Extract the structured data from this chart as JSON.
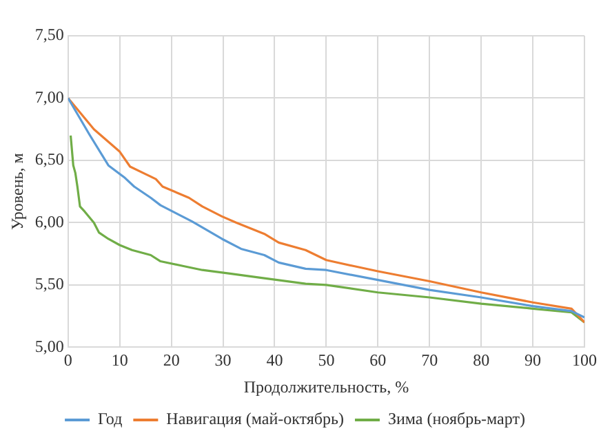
{
  "chart_data": {
    "type": "line",
    "xlabel": "Продолжительность, %",
    "ylabel": "Уровень, м",
    "xlim": [
      0,
      100
    ],
    "xticks": [
      0,
      10,
      20,
      30,
      40,
      50,
      60,
      70,
      80,
      90,
      100
    ],
    "ylim": [
      5,
      7.5
    ],
    "yticks": [
      {
        "value": 5,
        "label": "5,00"
      },
      {
        "value": 5.5,
        "label": "5,50"
      },
      {
        "value": 6,
        "label": "6,00"
      },
      {
        "value": 6.5,
        "label": "6,50"
      },
      {
        "value": 7,
        "label": "7,00"
      },
      {
        "value": 7.5,
        "label": "7,50"
      }
    ],
    "grid": true,
    "legend": "bottom",
    "marker": "none",
    "line_style": "solid",
    "series": [
      {
        "name": "Год",
        "color": "#5b9bd5",
        "x": [
          0,
          4.1,
          7.8,
          11,
          12.8,
          16,
          17.9,
          24,
          29.8,
          33.5,
          38,
          40.8,
          46,
          50,
          60,
          70,
          80,
          90,
          97.5,
          100
        ],
        "values": [
          7.0,
          6.71,
          6.46,
          6.36,
          6.29,
          6.2,
          6.14,
          6.01,
          5.87,
          5.79,
          5.74,
          5.68,
          5.63,
          5.62,
          5.54,
          5.46,
          5.4,
          5.33,
          5.29,
          5.24
        ]
      },
      {
        "name": "Навигация (май-октябрь)",
        "color": "#ed7d31",
        "x": [
          0,
          5,
          10,
          12,
          15,
          17,
          18.3,
          23.4,
          26,
          29.8,
          32.6,
          38,
          40.8,
          46,
          50,
          55.5,
          60,
          70,
          80,
          90,
          97.5,
          100
        ],
        "values": [
          7.0,
          6.75,
          6.57,
          6.45,
          6.39,
          6.35,
          6.29,
          6.2,
          6.13,
          6.05,
          6.0,
          5.91,
          5.84,
          5.78,
          5.7,
          5.65,
          5.61,
          5.53,
          5.44,
          5.36,
          5.31,
          5.2
        ]
      },
      {
        "name": "Зима (ноябрь-март)",
        "color": "#70ad47",
        "x": [
          0.5,
          1,
          1.4,
          1.8,
          2.3,
          3.2,
          5,
          6,
          7.8,
          10,
          12.4,
          16,
          17.9,
          22.5,
          26,
          31.6,
          37,
          46,
          50,
          60,
          70,
          80,
          90,
          97.5,
          100
        ],
        "values": [
          6.7,
          6.46,
          6.4,
          6.29,
          6.13,
          6.09,
          6.0,
          5.92,
          5.87,
          5.82,
          5.78,
          5.74,
          5.69,
          5.65,
          5.62,
          5.59,
          5.56,
          5.51,
          5.5,
          5.44,
          5.4,
          5.35,
          5.31,
          5.28,
          5.2
        ]
      }
    ]
  }
}
